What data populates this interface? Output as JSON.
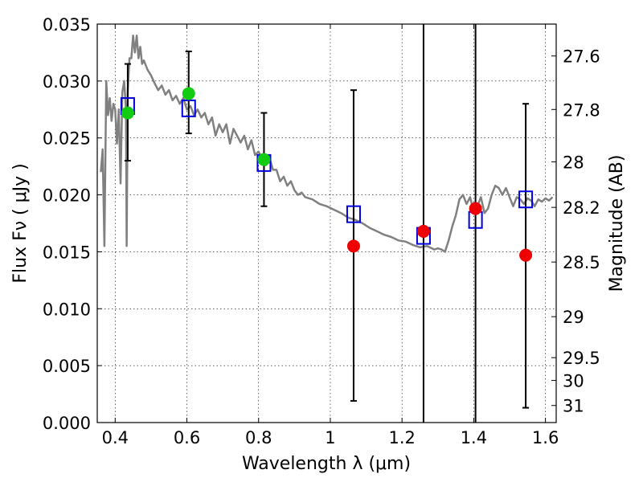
{
  "chart_data": {
    "type": "scatter",
    "title": "",
    "xlabel": "Wavelength  λ (μm)",
    "ylabel": "Flux  Fν  ( μJy )",
    "ylabel_right": "Magnitude (AB)",
    "xlim": [
      0.35,
      1.63
    ],
    "ylim": [
      0.0,
      0.035
    ],
    "grid": true,
    "grid_style": "dotted",
    "x_ticks": [
      0.4,
      0.6,
      0.8,
      1.0,
      1.2,
      1.4,
      1.6
    ],
    "x_tick_labels": [
      "0.4",
      "0.6",
      "0.8",
      "1",
      "1.2",
      "1.4",
      "1.6"
    ],
    "y_ticks": [
      0.0,
      0.005,
      0.01,
      0.015,
      0.02,
      0.025,
      0.03,
      0.035
    ],
    "y_tick_labels": [
      "0.000",
      "0.005",
      "0.010",
      "0.015",
      "0.020",
      "0.025",
      "0.030",
      "0.035"
    ],
    "right_ticks": [
      {
        "label": "27.6",
        "flux": 0.0322
      },
      {
        "label": "27.8",
        "flux": 0.0275
      },
      {
        "label": "28",
        "flux": 0.0229
      },
      {
        "label": "28.2",
        "flux": 0.0189
      },
      {
        "label": "28.5",
        "flux": 0.0141
      },
      {
        "label": "29",
        "flux": 0.0093
      },
      {
        "label": "29.5",
        "flux": 0.0057
      },
      {
        "label": "30",
        "flux": 0.0037
      },
      {
        "label": "31",
        "flux": 0.0015
      }
    ],
    "series": [
      {
        "type": "line",
        "color": "#808080",
        "x": [
          0.36,
          0.365,
          0.37,
          0.375,
          0.38,
          0.385,
          0.39,
          0.395,
          0.4,
          0.405,
          0.41,
          0.415,
          0.42,
          0.425,
          0.43,
          0.432,
          0.435,
          0.44,
          0.445,
          0.45,
          0.455,
          0.46,
          0.465,
          0.47,
          0.475,
          0.48,
          0.49,
          0.5,
          0.51,
          0.52,
          0.53,
          0.54,
          0.55,
          0.56,
          0.57,
          0.58,
          0.59,
          0.6,
          0.61,
          0.62,
          0.63,
          0.64,
          0.65,
          0.66,
          0.67,
          0.68,
          0.69,
          0.7,
          0.71,
          0.72,
          0.73,
          0.74,
          0.75,
          0.76,
          0.77,
          0.78,
          0.79,
          0.8,
          0.81,
          0.82,
          0.83,
          0.84,
          0.85,
          0.86,
          0.87,
          0.88,
          0.89,
          0.9,
          0.91,
          0.92,
          0.93,
          0.95,
          0.97,
          0.99,
          1.01,
          1.03,
          1.05,
          1.07,
          1.09,
          1.11,
          1.13,
          1.15,
          1.17,
          1.19,
          1.21,
          1.23,
          1.25,
          1.27,
          1.29,
          1.3,
          1.31,
          1.32,
          1.33,
          1.34,
          1.35,
          1.36,
          1.37,
          1.38,
          1.39,
          1.4,
          1.41,
          1.42,
          1.43,
          1.44,
          1.45,
          1.46,
          1.47,
          1.48,
          1.49,
          1.5,
          1.51,
          1.52,
          1.53,
          1.54,
          1.55,
          1.56,
          1.57,
          1.58,
          1.59,
          1.6,
          1.61,
          1.62
        ],
        "y": [
          0.022,
          0.024,
          0.0155,
          0.03,
          0.027,
          0.0285,
          0.0265,
          0.028,
          0.0275,
          0.0245,
          0.0275,
          0.021,
          0.029,
          0.03,
          0.0275,
          0.0155,
          0.029,
          0.032,
          0.032,
          0.034,
          0.0325,
          0.034,
          0.032,
          0.033,
          0.0315,
          0.0318,
          0.031,
          0.0305,
          0.0298,
          0.0292,
          0.0296,
          0.0288,
          0.0292,
          0.0283,
          0.0287,
          0.028,
          0.0285,
          0.0275,
          0.0278,
          0.027,
          0.0275,
          0.0268,
          0.0272,
          0.0262,
          0.0268,
          0.0252,
          0.0262,
          0.0255,
          0.0262,
          0.0245,
          0.0258,
          0.0252,
          0.0246,
          0.0252,
          0.024,
          0.0248,
          0.0235,
          0.0238,
          0.0232,
          0.0226,
          0.0233,
          0.0222,
          0.0222,
          0.0212,
          0.0216,
          0.0208,
          0.0212,
          0.0204,
          0.02,
          0.0202,
          0.0198,
          0.0196,
          0.0192,
          0.019,
          0.0187,
          0.0184,
          0.018,
          0.0178,
          0.0175,
          0.0171,
          0.0168,
          0.0165,
          0.0163,
          0.016,
          0.0159,
          0.0156,
          0.0154,
          0.0155,
          0.0152,
          0.0153,
          0.0152,
          0.015,
          0.016,
          0.0172,
          0.0182,
          0.0196,
          0.02,
          0.0192,
          0.0198,
          0.0185,
          0.019,
          0.0198,
          0.0184,
          0.0188,
          0.02,
          0.0208,
          0.0206,
          0.02,
          0.0206,
          0.0198,
          0.019,
          0.0198,
          0.0196,
          0.0192,
          0.0197,
          0.0195,
          0.019,
          0.0196,
          0.0194,
          0.0197,
          0.0195,
          0.0198
        ]
      },
      {
        "type": "scatter",
        "marker": "open-square",
        "color": "#0000dd",
        "x": [
          0.435,
          0.605,
          0.815,
          1.065,
          1.26,
          1.405,
          1.545
        ],
        "y": [
          0.0278,
          0.0276,
          0.0228,
          0.0183,
          0.0164,
          0.0178,
          0.0196
        ]
      },
      {
        "type": "scatter",
        "marker": "filled-circle",
        "color": "#11cc11",
        "x": [
          0.435,
          0.605,
          0.815
        ],
        "y": [
          0.0272,
          0.0289,
          0.0231
        ],
        "error": [
          {
            "low": 0.023,
            "high": 0.0315
          },
          {
            "low": 0.0254,
            "high": 0.0326
          },
          {
            "low": 0.019,
            "high": 0.0272
          }
        ]
      },
      {
        "type": "scatter",
        "marker": "filled-circle",
        "color": "#ee0000",
        "x": [
          1.065,
          1.26,
          1.405,
          1.545
        ],
        "y": [
          0.0155,
          0.0168,
          0.0188,
          0.0147
        ],
        "error": [
          {
            "low": 0.0019,
            "high": 0.0292
          },
          {
            "low": 0.0,
            "high": 0.035
          },
          {
            "low": 0.0,
            "high": 0.035
          },
          {
            "low": 0.0013,
            "high": 0.028
          }
        ]
      }
    ]
  }
}
